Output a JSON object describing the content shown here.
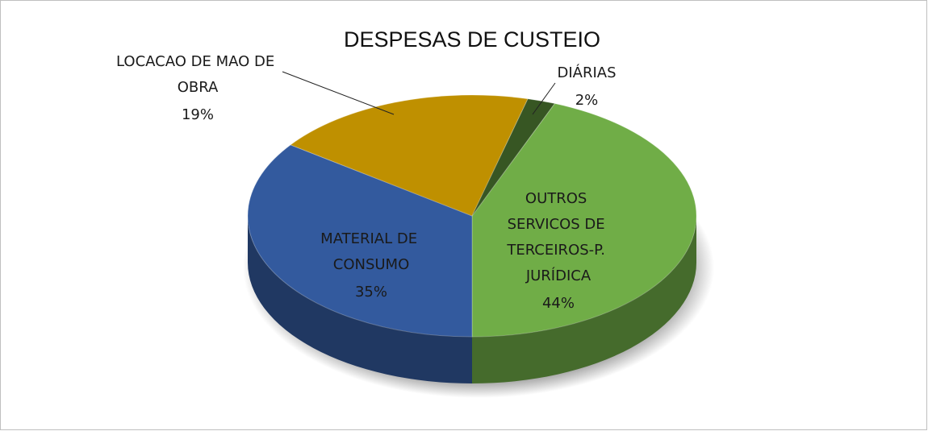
{
  "chart_data": {
    "type": "pie",
    "title": "DESPESAS DE CUSTEIO",
    "categories": [
      "OUTROS SERVICOS DE TERCEIROS-P. JURÍDICA",
      "MATERIAL DE CONSUMO",
      "LOCACAO DE MAO DE OBRA",
      "DIÁRIAS"
    ],
    "values": [
      44,
      35,
      19,
      2
    ],
    "value_labels": [
      "44%",
      "35%",
      "19%",
      "2%"
    ],
    "colors": [
      "#70ad47",
      "#335a9e",
      "#bf9000",
      "#375623"
    ]
  }
}
